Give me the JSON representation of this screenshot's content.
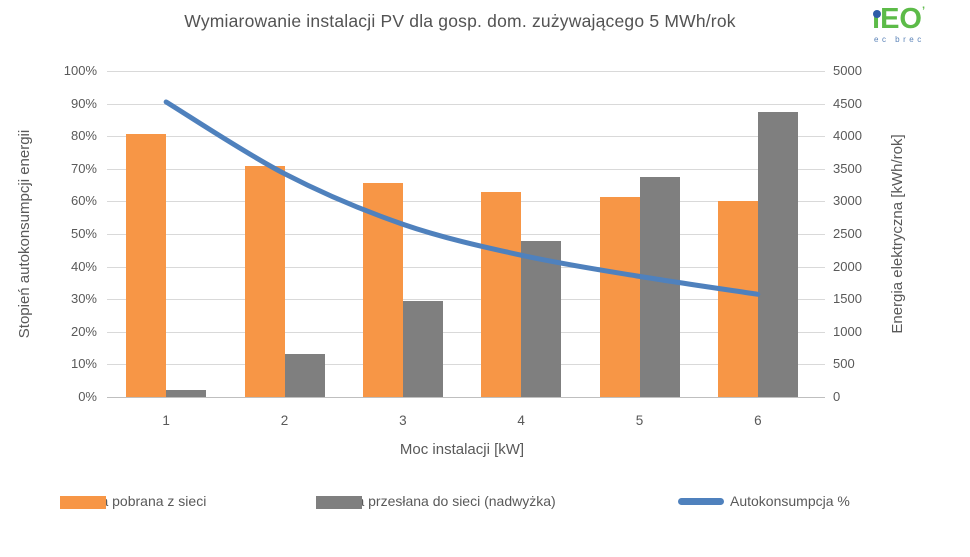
{
  "title": "Wymiarowanie instalacji PV dla gosp. dom. zużywającego 5 MWh/rok",
  "logo": {
    "text_main": "iEO",
    "mark": "’",
    "text_sub": "ec brec",
    "green": "#5cbb48",
    "blue": "#2d5ca8",
    "sub_blue": "#5b83b8"
  },
  "colors": {
    "orange": "#F79646",
    "gray": "#7F7F7F",
    "blue": "#4F81BD",
    "grid": "#d9d9d9",
    "axis_line": "#bfbfbf",
    "text": "#595959"
  },
  "chart_data": {
    "type": "bar",
    "subtype": "combo bar + smooth line, dual axis",
    "title": "Wymiarowanie instalacji PV dla gosp. dom. zużywającego 5 MWh/rok",
    "categories": [
      "1",
      "2",
      "3",
      "4",
      "5",
      "6"
    ],
    "xlabel": "Moc instalacji [kW]",
    "ylabel_left": "Stopień autokonsumpcji energii",
    "ylabel_right": "Energia elektryczna [kWh/rok]",
    "left_axis": {
      "min": 0,
      "max": 100,
      "step": 10,
      "unit": "%",
      "ticks": [
        "0%",
        "10%",
        "20%",
        "30%",
        "40%",
        "50%",
        "60%",
        "70%",
        "80%",
        "90%",
        "100%"
      ]
    },
    "right_axis": {
      "min": 0,
      "max": 5000,
      "step": 500,
      "unit": "kWh/rok",
      "ticks": [
        "0",
        "500",
        "1000",
        "1500",
        "2000",
        "2500",
        "3000",
        "3500",
        "4000",
        "4500",
        "5000"
      ]
    },
    "grid": true,
    "legend_position": "bottom",
    "series": [
      {
        "name": "Energia pobrana z sieci",
        "type": "bar",
        "axis": "right",
        "unit": "kWh/rok",
        "color": "#F79646",
        "values": [
          4035,
          3550,
          3290,
          3150,
          3075,
          3000
        ]
      },
      {
        "name": "Energia przesłana do sieci (nadwyżka)",
        "type": "bar",
        "axis": "right",
        "unit": "kWh/rok",
        "color": "#7F7F7F",
        "values": [
          110,
          660,
          1465,
          2395,
          3375,
          4370
        ]
      },
      {
        "name": "Autokonsumpcja %",
        "type": "line",
        "axis": "left",
        "unit": "%",
        "color": "#4F81BD",
        "values": [
          90.5,
          68.5,
          53,
          43.5,
          37,
          31.5
        ]
      }
    ]
  }
}
